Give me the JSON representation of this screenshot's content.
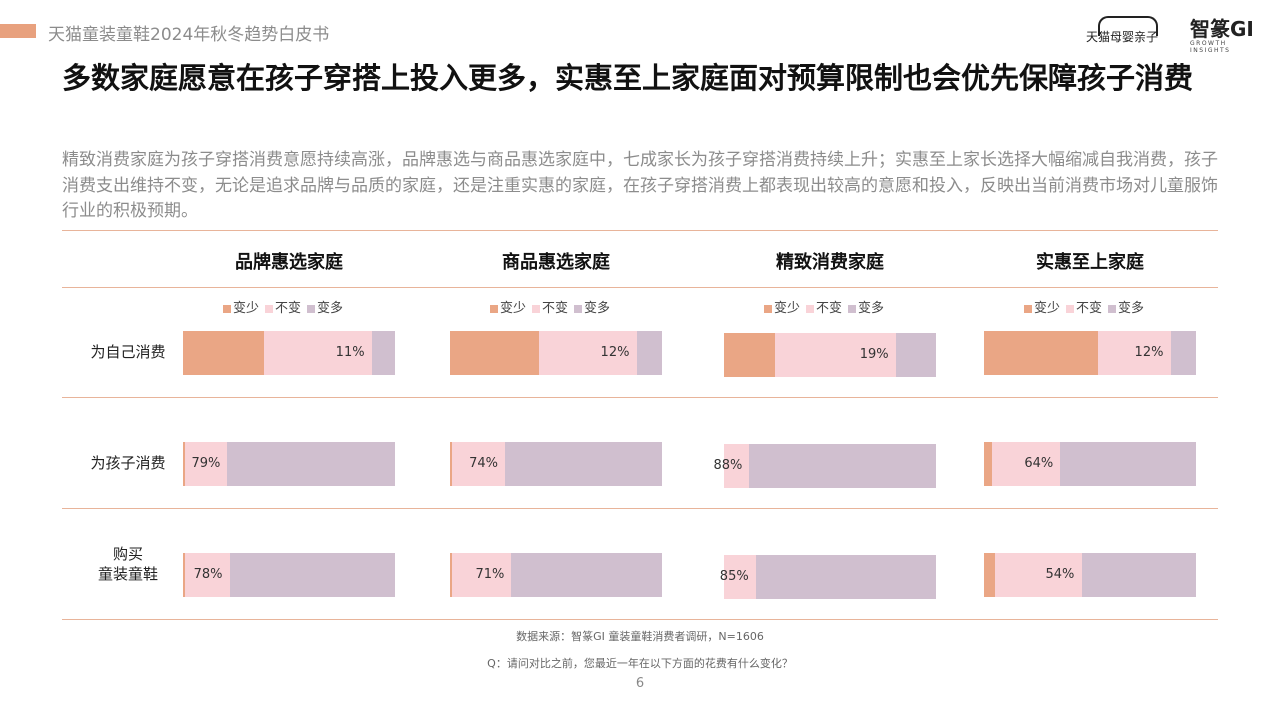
{
  "header": {
    "report_title": "天猫童装童鞋2024年秋冬趋势白皮书",
    "logo_tmall": "天猫母婴亲子",
    "logo_gi": "智篆GI",
    "logo_gi_sub": "GROWTH INSIGHTS"
  },
  "headline": "多数家庭愿意在孩子穿搭上投入更多，实惠至上家庭面对预算限制也会优先保障孩子消费",
  "description": "精致消费家庭为孩子穿搭消费意愿持续高涨，品牌惠选与商品惠选家庭中，七成家长为孩子穿搭消费持续上升；实惠至上家长选择大幅缩减自我消费，孩子消费支出维持不变，无论是追求品牌与品质的家庭，还是注重实惠的家庭，在孩子穿搭消费上都表现出较高的意愿和投入，反映出当前消费市场对儿童服饰行业的积极预期。",
  "colors": {
    "decrease": "#eaa685",
    "same": "#f9d3d8",
    "increase": "#d0bfcf",
    "accent": "#e8a17e"
  },
  "legend": {
    "decrease": "变少",
    "same": "不变",
    "increase": "变多"
  },
  "chart_data": {
    "type": "bar",
    "stacked": true,
    "orientation": "horizontal",
    "groups": [
      "品牌惠选家庭",
      "商品惠选家庭",
      "精致消费家庭",
      "实惠至上家庭"
    ],
    "rows": [
      "为自己消费",
      "为孩子消费",
      "购买\n童装童鞋"
    ],
    "series_names": [
      "变少",
      "不变",
      "变多"
    ],
    "values": [
      [
        {
          "dec": 38,
          "same": 51,
          "inc": 11,
          "label": "11%"
        },
        {
          "dec": 42,
          "same": 46,
          "inc": 12,
          "label": "12%"
        },
        {
          "dec": 24,
          "same": 57,
          "inc": 19,
          "label": "19%"
        },
        {
          "dec": 54,
          "same": 34,
          "inc": 12,
          "label": "12%"
        }
      ],
      [
        {
          "dec": 1,
          "same": 20,
          "inc": 79,
          "label": "79%"
        },
        {
          "dec": 1,
          "same": 25,
          "inc": 74,
          "label": "74%"
        },
        {
          "dec": 0,
          "same": 12,
          "inc": 88,
          "label": "88%"
        },
        {
          "dec": 4,
          "same": 32,
          "inc": 64,
          "label": "64%"
        }
      ],
      [
        {
          "dec": 1,
          "same": 21,
          "inc": 78,
          "label": "78%"
        },
        {
          "dec": 1,
          "same": 28,
          "inc": 71,
          "label": "71%"
        },
        {
          "dec": 0,
          "same": 15,
          "inc": 85,
          "label": "85%"
        },
        {
          "dec": 5,
          "same": 41,
          "inc": 54,
          "label": "54%"
        }
      ]
    ]
  },
  "footer": {
    "source": "数据来源：智篆GI 童装童鞋消费者调研，N=1606",
    "question": "Q：请问对比之前，您最近一年在以下方面的花费有什么变化？",
    "page_number": "6"
  }
}
